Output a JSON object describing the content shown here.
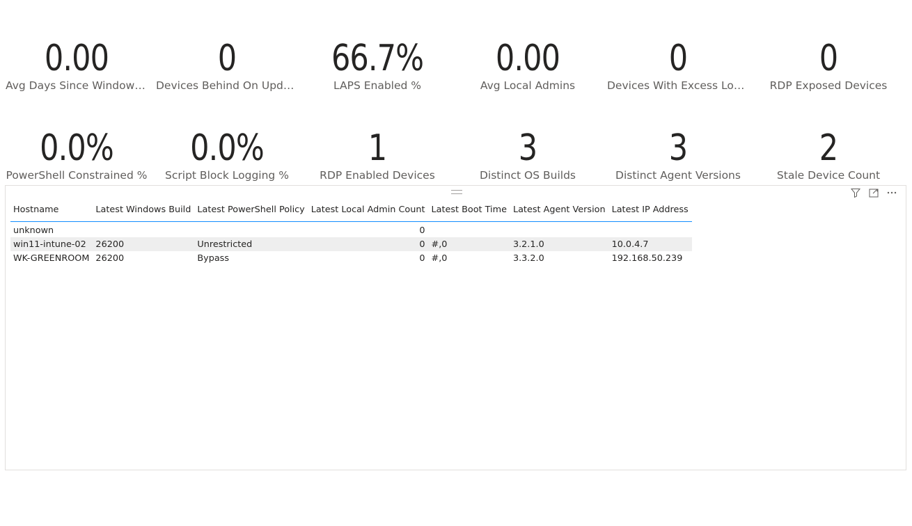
{
  "cards": [
    {
      "value": "0.00",
      "label": "Avg Days Since Windows..."
    },
    {
      "value": "0",
      "label": "Devices Behind On Upda..."
    },
    {
      "value": "66.7%",
      "label": "LAPS Enabled %"
    },
    {
      "value": "0.00",
      "label": "Avg Local Admins"
    },
    {
      "value": "0",
      "label": "Devices With Excess Loca..."
    },
    {
      "value": "0",
      "label": "RDP Exposed Devices"
    },
    {
      "value": "0.0%",
      "label": "PowerShell Constrained %"
    },
    {
      "value": "0.0%",
      "label": "Script Block Logging %"
    },
    {
      "value": "1",
      "label": "RDP Enabled Devices"
    },
    {
      "value": "3",
      "label": "Distinct OS Builds"
    },
    {
      "value": "3",
      "label": "Distinct Agent Versions"
    },
    {
      "value": "2",
      "label": "Stale Device Count"
    }
  ],
  "toolbar": {
    "filter_icon": "filter-icon",
    "focus_icon": "focus-mode-icon",
    "more_icon": "more-options-icon"
  },
  "table": {
    "columns": [
      "Hostname",
      "Latest Windows Build",
      "Latest PowerShell Policy",
      "Latest Local Admin Count",
      "Latest Boot Time",
      "Latest Agent Version",
      "Latest IP Address"
    ],
    "rows": [
      [
        "unknown",
        "",
        "",
        "0",
        "",
        "",
        ""
      ],
      [
        "win11-intune-02",
        "26200",
        "Unrestricted",
        "0",
        "#,0",
        "3.2.1.0",
        "10.0.4.7"
      ],
      [
        "WK-GREENROOM",
        "26200",
        "Bypass",
        "0",
        "#,0",
        "3.3.2.0",
        "192.168.50.239"
      ]
    ]
  }
}
